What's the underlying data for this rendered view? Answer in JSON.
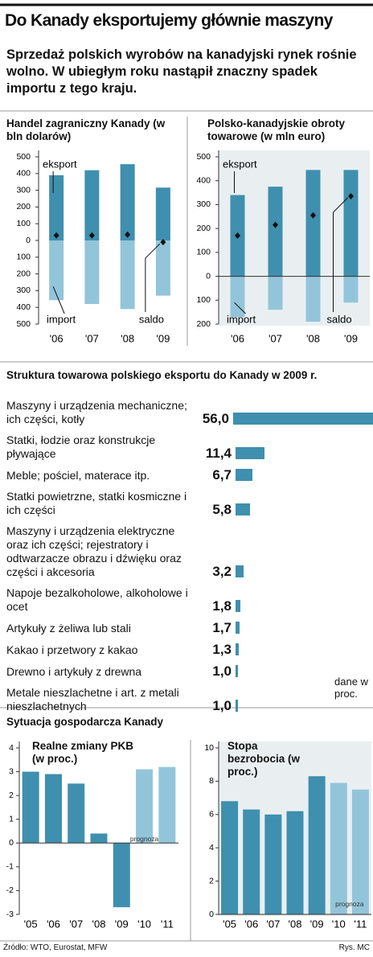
{
  "title": "Do Kanady eksportujemy głównie maszyny",
  "subtitle": "Sprzedaż polskich wyrobów na kanadyjski rynek rośnie wolno. W ubiegłym roku nastąpił znaczny spadek importu z tego kraju.",
  "section_export": "Struktura towarowa polskiego eksportu do Kanady w 2009 r.",
  "section_economy": "Sytuacja gospodarcza Kanady",
  "source": "Źródło: WTO, Eurostat, MFW",
  "credit": "Rys. MC",
  "chart_data": [
    {
      "type": "bar",
      "title": "Handel zagraniczny Kanady (w bln dolarów)",
      "categories": [
        "'06",
        "'07",
        "'08",
        "'09"
      ],
      "series": [
        {
          "name": "eksport",
          "color": "#3f8fae",
          "values": [
            390,
            420,
            456,
            316
          ]
        },
        {
          "name": "import",
          "color": "#93c5da",
          "values": [
            -357,
            -380,
            -410,
            -330
          ]
        },
        {
          "name": "saldo",
          "color": "#111111",
          "marker": "diamond",
          "values": [
            30,
            30,
            35,
            -10
          ]
        }
      ],
      "ylim": [
        -500,
        500
      ],
      "yticks": [
        500,
        400,
        300,
        200,
        100,
        0,
        {
          "value": -100,
          "label": "100"
        },
        {
          "value": -200,
          "label": "200"
        },
        {
          "value": -300,
          "label": "300"
        },
        {
          "value": -400,
          "label": "400"
        },
        {
          "value": -500,
          "label": "500"
        }
      ]
    },
    {
      "type": "bar",
      "title": "Polsko-kanadyjskie obroty towarowe (w mln euro)",
      "categories": [
        "'06",
        "'07",
        "'08",
        "'09"
      ],
      "series": [
        {
          "name": "eksport",
          "color": "#3f8fae",
          "values": [
            340,
            375,
            445,
            445
          ]
        },
        {
          "name": "import",
          "color": "#93c5da",
          "values": [
            -170,
            -140,
            -190,
            -110
          ]
        },
        {
          "name": "saldo",
          "color": "#111111",
          "marker": "diamond",
          "values": [
            170,
            215,
            255,
            335
          ]
        }
      ],
      "ylim": [
        -200,
        500
      ],
      "yticks": [
        500,
        400,
        300,
        200,
        100,
        0,
        {
          "value": -100,
          "label": "100"
        },
        {
          "value": -200,
          "label": "200"
        }
      ]
    },
    {
      "type": "barh",
      "categories": [
        "Maszyny i urządzenia mechaniczne; ich części, kotły",
        "Statki, łodzie oraz konstrukcje pływające",
        "Meble; pościel, materace itp.",
        "Statki powietrzne, statki kosmiczne i ich części",
        "Maszyny i urządzenia elektryczne oraz ich części; rejestratory i odtwarzacze obrazu i dźwięku oraz części i akcesoria",
        "Napoje bezalkoholowe, alkoholowe i ocet",
        "Artykuły z żeliwa lub stali",
        "Kakao i przetwory z kakao",
        "Drewno i artykuły z drewna",
        "Metale nieszlachetne i art. z metali nieszlachetnych"
      ],
      "values": [
        56.0,
        11.4,
        6.7,
        5.8,
        3.2,
        1.8,
        1.7,
        1.3,
        1.0,
        1.0
      ],
      "value_labels": [
        "56,0",
        "11,4",
        "6,7",
        "5,8",
        "3,2",
        "1,8",
        "1,7",
        "1,3",
        "1,0",
        "1,0"
      ],
      "color": "#3f8fae",
      "note": "dane w proc."
    },
    {
      "type": "bar",
      "title": "Realne zmiany PKB (w proc.)",
      "categories": [
        "'05",
        "'06",
        "'07",
        "'08",
        "'09",
        "'10",
        "'11"
      ],
      "values": [
        3.0,
        2.9,
        2.5,
        0.4,
        -2.7,
        3.1,
        3.2
      ],
      "colors": [
        "#3f8fae",
        "#3f8fae",
        "#3f8fae",
        "#3f8fae",
        "#3f8fae",
        "#93c5da",
        "#93c5da"
      ],
      "annotation": "prognoza",
      "ylim": [
        -3,
        4
      ],
      "yticks": [
        -3,
        -2,
        -1,
        0,
        1,
        2,
        3,
        4
      ]
    },
    {
      "type": "bar",
      "title": "Stopa bezrobocia (w proc.)",
      "categories": [
        "'05",
        "'06",
        "'07",
        "'08",
        "'09",
        "'10",
        "'11"
      ],
      "values": [
        6.8,
        6.3,
        6.0,
        6.2,
        8.3,
        7.9,
        7.5
      ],
      "colors": [
        "#3f8fae",
        "#3f8fae",
        "#3f8fae",
        "#3f8fae",
        "#3f8fae",
        "#93c5da",
        "#93c5da"
      ],
      "annotation": "prognoza",
      "ylim": [
        0,
        10
      ],
      "yticks": [
        0,
        2,
        4,
        6,
        8,
        10
      ]
    }
  ]
}
